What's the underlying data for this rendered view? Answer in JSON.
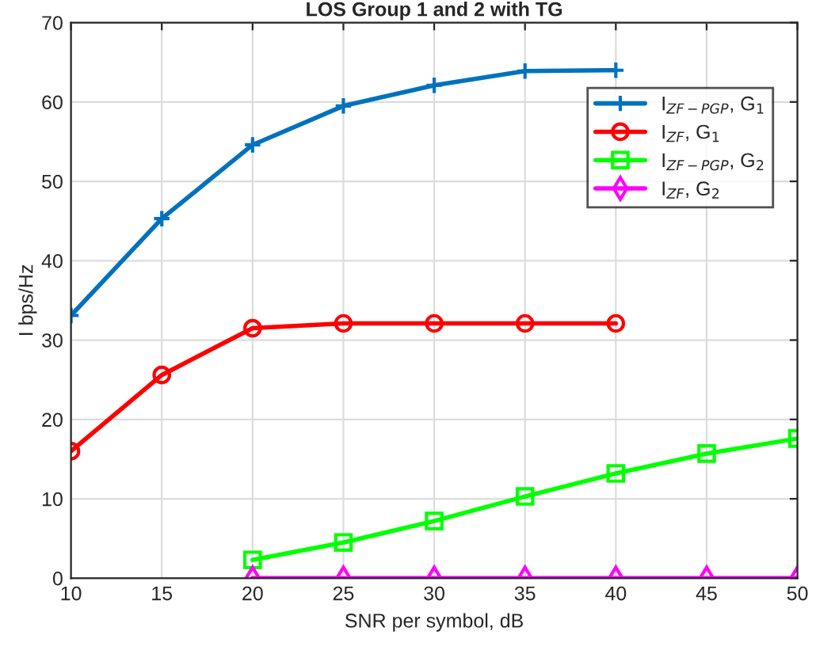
{
  "chart_data": {
    "type": "line",
    "title": "LOS Group 1 and 2 with TG",
    "xlabel": "SNR per symbol, dB",
    "ylabel": "I bps/Hz",
    "xlim": [
      10,
      50
    ],
    "xticks": [
      10,
      15,
      20,
      25,
      30,
      35,
      40,
      45,
      50
    ],
    "ylim": [
      0,
      70
    ],
    "yticks": [
      0,
      10,
      20,
      30,
      40,
      50,
      60,
      70
    ],
    "grid": true,
    "legend": "top right",
    "series": [
      {
        "name": "I$_{ZF−PGP}$, G$_{1}$",
        "color": "#0072bd",
        "marker": "cross",
        "x": [
          10,
          15,
          20,
          25,
          30,
          35,
          40
        ],
        "values": [
          33.1,
          45.3,
          54.6,
          59.5,
          62.1,
          63.9,
          64.0
        ]
      },
      {
        "name": "I$_{ZF}$, G$_{1}$",
        "color": "#ff0000",
        "marker": "circle",
        "x": [
          10,
          15,
          20,
          25,
          30,
          35,
          40
        ],
        "values": [
          16.0,
          25.6,
          31.5,
          32.1,
          32.1,
          32.1,
          32.1
        ]
      },
      {
        "name": "I$_{ZF−PGP}$, G$_{2}$",
        "color": "#00ff00",
        "marker": "square",
        "x": [
          20,
          25,
          30,
          35,
          40,
          45,
          50
        ],
        "values": [
          2.3,
          4.5,
          7.2,
          10.3,
          13.2,
          15.7,
          17.6
        ]
      },
      {
        "name": "I$_{ZF}$, G$_{2}$",
        "color": "#ff00ff",
        "marker": "diamond",
        "x": [
          20,
          25,
          30,
          35,
          40,
          45,
          50
        ],
        "values": [
          0,
          0,
          0,
          0,
          0,
          0,
          0
        ]
      }
    ]
  }
}
